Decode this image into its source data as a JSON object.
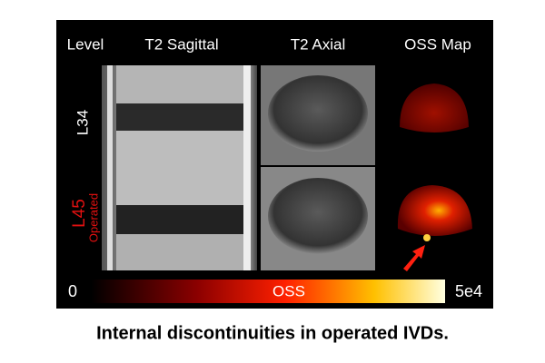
{
  "figure": {
    "headers": [
      "Level",
      "T2 Sagittal",
      "T2 Axial",
      "OSS Map"
    ],
    "levels": [
      {
        "label": "L34"
      },
      {
        "label": "L45",
        "note": "Operated"
      }
    ],
    "colorbar": {
      "min_label": "0",
      "title": "OSS",
      "max_label": "5e4"
    },
    "caption": "Internal discontinuities in operated IVDs."
  }
}
